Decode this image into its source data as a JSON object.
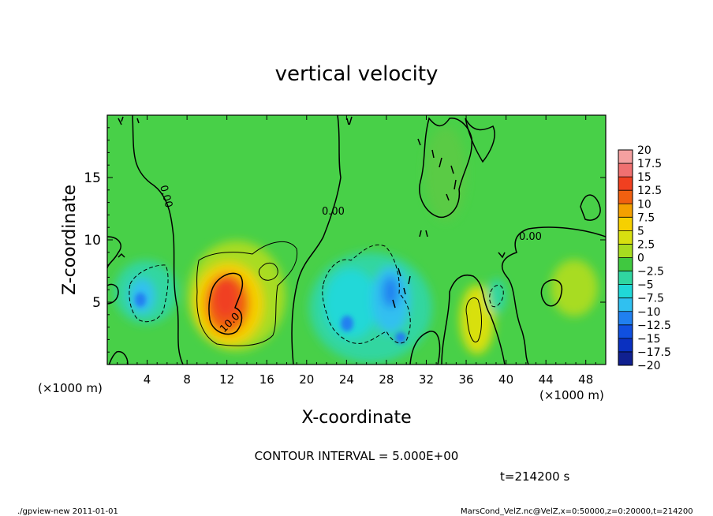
{
  "chart_data": {
    "type": "heatmap",
    "title": "vertical velocity",
    "xlabel": "X-coordinate",
    "ylabel": "Z-coordinate",
    "x_unit_left": "(×1000 m)",
    "x_unit_right": "(×1000 m)",
    "xlim": [
      0,
      50
    ],
    "ylim": [
      0,
      20
    ],
    "x_ticks": [
      "4",
      "8",
      "12",
      "16",
      "20",
      "24",
      "28",
      "32",
      "36",
      "40",
      "44",
      "48"
    ],
    "y_ticks": [
      "5",
      "10",
      "15"
    ],
    "colorbar": {
      "labels": [
        "20",
        "17.5",
        "15",
        "12.5",
        "10",
        "7.5",
        "5",
        "2.5",
        "0",
        "−2.5",
        "−5",
        "−7.5",
        "−10",
        "−12.5",
        "−15",
        "−17.5",
        "−20"
      ],
      "colors": [
        "#f4a0a0",
        "#f07070",
        "#f04020",
        "#f06010",
        "#f4a000",
        "#f6d000",
        "#d8e010",
        "#a8dc20",
        "#40c840",
        "#30d6a0",
        "#20d8d8",
        "#30c0f0",
        "#2080f0",
        "#1050e0",
        "#0a30c0",
        "#102090",
        "#7020b0"
      ]
    },
    "contour_labels": [
      "0.00",
      "0.00",
      "0.00",
      "10.0"
    ],
    "features": [
      {
        "x": 12.5,
        "z": 5.0,
        "value": 15
      },
      {
        "x": 12.5,
        "z": 5.5,
        "value": 10
      },
      {
        "x": 37.0,
        "z": 3.5,
        "value": 6
      },
      {
        "x": 46.5,
        "z": 6.0,
        "value": 3
      },
      {
        "x": 5.0,
        "z": 5.0,
        "value": -6
      },
      {
        "x": 24.0,
        "z": 5.5,
        "value": -5
      },
      {
        "x": 28.5,
        "z": 5.5,
        "value": -9
      },
      {
        "x": 29.2,
        "z": 2.5,
        "value": -8
      },
      {
        "x": 39.0,
        "z": 5.5,
        "value": -4
      }
    ]
  },
  "contour_interval_text": "CONTOUR INTERVAL = 5.000E+00",
  "time_text": "t=214200  s",
  "footer_left": "./gpview-new   2011-01-01",
  "footer_right": "MarsCond_VelZ.nc@VelZ,x=0:50000,z=0:20000,t=214200"
}
